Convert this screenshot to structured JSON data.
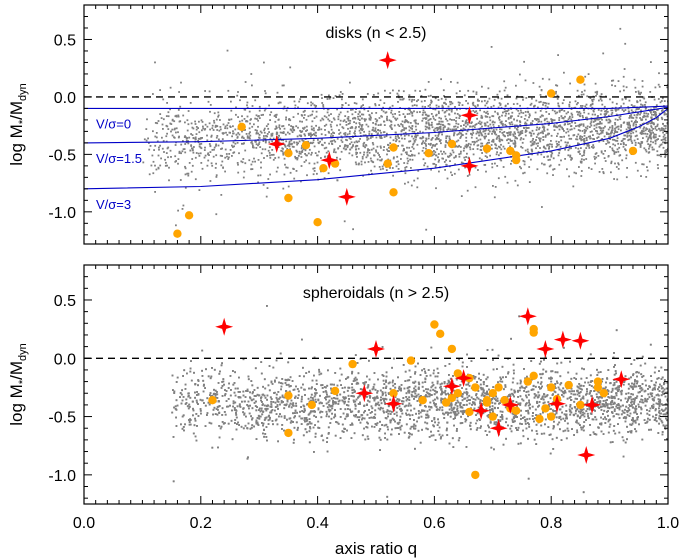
{
  "chart_data": [
    {
      "type": "scatter",
      "title": "disks (n < 2.5)",
      "xlabel": "axis ratio q",
      "ylabel_main": "log M",
      "ylabel_sub1": "*",
      "ylabel_mid": "/M",
      "ylabel_sub2": "dyn",
      "xlim": [
        0.0,
        1.0
      ],
      "ylim": [
        -1.28,
        0.8
      ],
      "xticks": [
        "0.0",
        "0.2",
        "0.4",
        "0.6",
        "0.8",
        "1.0"
      ],
      "yticks": [
        "0.5",
        "0.0",
        "-0.5",
        "-1.0"
      ],
      "ytick_values": [
        0.5,
        0.0,
        -0.5,
        -1.0
      ],
      "reference_line_y": 0.0,
      "background_cloud": {
        "color": "#808080",
        "x_center_range": [
          0.1,
          1.0
        ],
        "y_center": -0.33,
        "y_spread": 0.17
      },
      "curves": [
        {
          "name": "V/σ=0",
          "x": [
            0.0,
            0.2,
            0.4,
            0.6,
            0.8,
            0.9,
            0.95,
            1.0
          ],
          "y": [
            -0.1,
            -0.1,
            -0.1,
            -0.1,
            -0.1,
            -0.1,
            -0.09,
            -0.08
          ]
        },
        {
          "name": "V/σ=1.5",
          "x": [
            0.0,
            0.2,
            0.4,
            0.6,
            0.8,
            0.9,
            0.95,
            1.0
          ],
          "y": [
            -0.4,
            -0.39,
            -0.36,
            -0.31,
            -0.23,
            -0.17,
            -0.13,
            -0.09
          ]
        },
        {
          "name": "V/σ=3",
          "x": [
            0.0,
            0.2,
            0.4,
            0.6,
            0.8,
            0.9,
            0.95,
            0.98,
            1.0
          ],
          "y": [
            -0.8,
            -0.78,
            -0.72,
            -0.62,
            -0.47,
            -0.36,
            -0.26,
            -0.18,
            -0.1
          ]
        }
      ],
      "curve_color": "#0000c8",
      "orange_points": {
        "color": "#ffa500",
        "x": [
          0.16,
          0.18,
          0.27,
          0.35,
          0.35,
          0.38,
          0.4,
          0.41,
          0.43,
          0.52,
          0.53,
          0.53,
          0.59,
          0.63,
          0.69,
          0.73,
          0.74,
          0.74,
          0.8,
          0.85,
          0.94
        ],
        "y": [
          -1.19,
          -1.03,
          -0.26,
          -0.49,
          -0.88,
          -0.42,
          -1.09,
          -0.62,
          -0.58,
          -0.58,
          -0.83,
          -0.44,
          -0.49,
          -0.41,
          -0.45,
          -0.47,
          -0.55,
          -0.51,
          0.03,
          0.15,
          -0.47
        ]
      },
      "red_stars": {
        "color": "#ff0000",
        "x": [
          0.33,
          0.42,
          0.45,
          0.52,
          0.66,
          0.66
        ],
        "y": [
          -0.41,
          -0.55,
          -0.87,
          0.32,
          -0.16,
          -0.6
        ]
      }
    },
    {
      "type": "scatter",
      "title": "spheroidals (n > 2.5)",
      "xlabel": "axis ratio q",
      "ylabel_main": "log M",
      "ylabel_sub1": "*",
      "ylabel_mid": "/M",
      "ylabel_sub2": "dyn",
      "xlim": [
        0.0,
        1.0
      ],
      "ylim": [
        -1.25,
        0.8
      ],
      "xticks": [
        "0.0",
        "0.2",
        "0.4",
        "0.6",
        "0.8",
        "1.0"
      ],
      "yticks": [
        "0.5",
        "0.0",
        "-0.5",
        "-1.0"
      ],
      "ytick_values": [
        0.5,
        0.0,
        -0.5,
        -1.0
      ],
      "reference_line_y": 0.0,
      "background_cloud": {
        "color": "#808080",
        "x_center_range": [
          0.15,
          1.0
        ],
        "y_center": -0.38,
        "y_spread": 0.15
      },
      "orange_points": {
        "color": "#ffa500",
        "x": [
          0.22,
          0.35,
          0.35,
          0.39,
          0.43,
          0.46,
          0.53,
          0.56,
          0.58,
          0.6,
          0.61,
          0.63,
          0.64,
          0.66,
          0.67,
          0.69,
          0.7,
          0.71,
          0.74,
          0.77,
          0.77,
          0.77,
          0.78,
          0.79,
          0.8,
          0.8,
          0.81,
          0.83,
          0.85,
          0.88,
          0.88,
          0.89,
          0.63,
          0.66,
          0.69,
          0.73,
          0.76,
          0.67,
          0.7,
          0.72,
          0.62,
          0.64
        ],
        "y": [
          -0.36,
          -0.64,
          -0.32,
          -0.4,
          -0.28,
          -0.05,
          -0.3,
          -0.02,
          -0.36,
          0.29,
          0.21,
          0.08,
          -0.3,
          -0.46,
          -1.0,
          -0.36,
          -0.3,
          -0.25,
          -0.45,
          0.25,
          0.22,
          -0.15,
          -0.52,
          -0.43,
          -0.25,
          -0.5,
          -0.35,
          -0.23,
          -0.4,
          -0.2,
          -0.25,
          -0.3,
          -0.34,
          -0.17,
          -0.38,
          -0.43,
          -0.2,
          -0.25,
          -0.5,
          -0.36,
          -0.38,
          -0.13
        ]
      },
      "red_stars": {
        "color": "#ff0000",
        "x": [
          0.24,
          0.48,
          0.5,
          0.53,
          0.63,
          0.65,
          0.68,
          0.71,
          0.73,
          0.76,
          0.79,
          0.81,
          0.82,
          0.85,
          0.86,
          0.87,
          0.92
        ],
        "y": [
          0.27,
          -0.3,
          0.08,
          -0.39,
          -0.24,
          -0.17,
          -0.45,
          -0.6,
          -0.4,
          0.36,
          0.08,
          -0.39,
          0.16,
          0.15,
          -0.83,
          -0.4,
          -0.18
        ]
      }
    }
  ]
}
